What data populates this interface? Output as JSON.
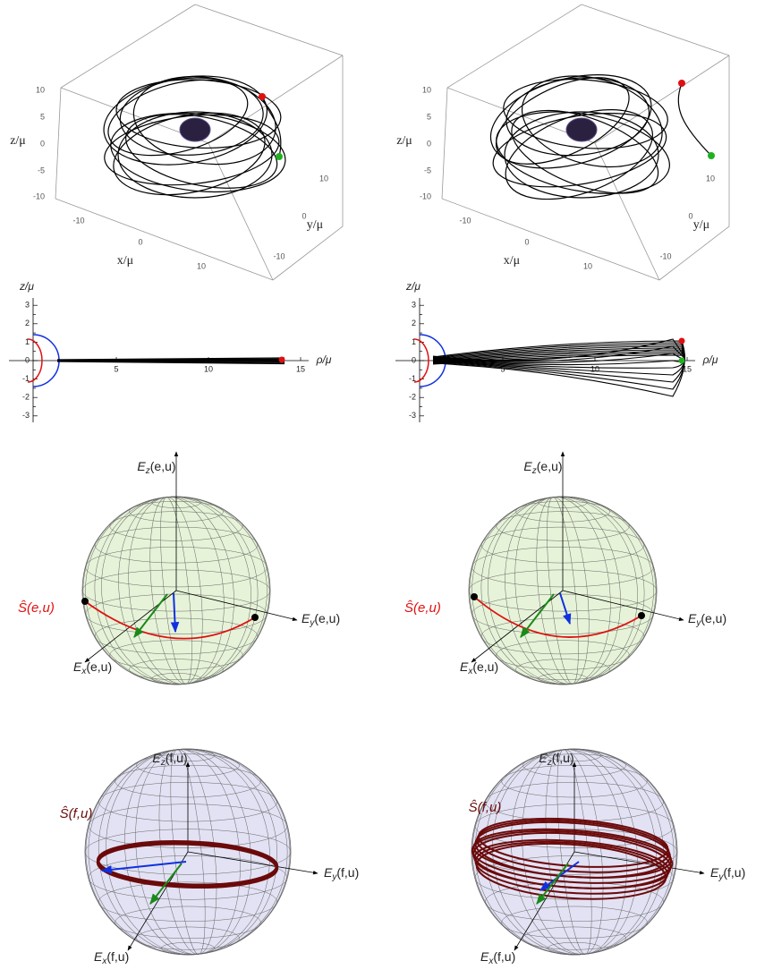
{
  "columns": [
    {
      "orbit_3d": {
        "x_label": "x/μ",
        "y_label": "y/μ",
        "z_label": "z/μ",
        "x_ticks": [
          "-10",
          "0",
          "10"
        ],
        "y_ticks": [
          "10",
          "0",
          "-10"
        ],
        "z_ticks": [
          "10",
          "5",
          "0",
          "-5",
          "-10"
        ]
      },
      "meridian": {
        "x_label": "ρ/μ",
        "y_label": "z/μ",
        "x_ticks": [
          "5",
          "10",
          "15"
        ],
        "y_ticks": [
          "3",
          "2",
          "1",
          "0",
          "-1",
          "-2",
          "-3"
        ]
      },
      "sphere_e": {
        "symbol": "E",
        "z_sub": "z",
        "y_sub": "y",
        "x_sub": "x",
        "args": "(e,u)",
        "spin_label": "Ŝ(e,u)"
      },
      "sphere_f": {
        "symbol": "E",
        "z_sub": "z",
        "y_sub": "y",
        "x_sub": "x",
        "args": "(f,u)",
        "spin_label": "Ŝ(f,u)"
      }
    },
    {
      "orbit_3d": {
        "x_label": "x/μ",
        "y_label": "y/μ",
        "z_label": "z/μ",
        "x_ticks": [
          "-10",
          "0",
          "10"
        ],
        "y_ticks": [
          "10",
          "0",
          "-10"
        ],
        "z_ticks": [
          "10",
          "5",
          "0",
          "-5",
          "-10"
        ]
      },
      "meridian": {
        "x_label": "ρ/μ",
        "y_label": "z/μ",
        "x_ticks": [
          "5",
          "10",
          "15"
        ],
        "y_ticks": [
          "3",
          "2",
          "1",
          "0",
          "-1",
          "-2",
          "-3"
        ]
      },
      "sphere_e": {
        "symbol": "E",
        "z_sub": "z",
        "y_sub": "y",
        "x_sub": "x",
        "args": "(e,u)",
        "spin_label": "Ŝ(e,u)"
      },
      "sphere_f": {
        "symbol": "E",
        "z_sub": "z",
        "y_sub": "y",
        "x_sub": "x",
        "args": "(f,u)",
        "spin_label": "Ŝ(f,u)"
      }
    }
  ]
}
